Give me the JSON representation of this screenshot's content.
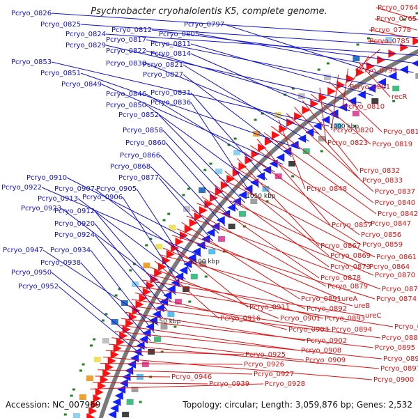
{
  "title": "Psychrobacter cryohalolentis K5, complete genome.",
  "footer": {
    "accession": "Accession: NC_007969",
    "topology": "Topology: circular; Length: 3,059,876 bp; Genes: 2,532"
  },
  "colors": {
    "left_labels": "#1010d0",
    "right_labels": "#e01010",
    "backbone": "#7a7a7a"
  },
  "ticks": [
    "950 kbp",
    "1000 kbp",
    "1050 kbp",
    "1100 kbp",
    "1150 kbp"
  ],
  "left_labels": [
    "Pcryo_0826",
    "Pcryo_0825",
    "Pcryo_0824",
    "Pcryo_0812",
    "Pcryo_0805",
    "Pcryo_0797",
    "Pcryo_0817",
    "Pcryo_0811",
    "Pcryo_0829",
    "Pcryo_0822",
    "Pcryo_0814",
    "Pcryo_0853",
    "Pcryo_0830",
    "Pcryo_0821",
    "Pcryo_0851",
    "Pcryo_0827",
    "Pcryo_0849",
    "Pcryo_0846",
    "Pcryo_0831",
    "Pcryo_0850",
    "Pcryo_0836",
    "Pcryo_0852",
    "Pcryo_0858",
    "Pcryo_0860",
    "Pcryo_0866",
    "Pcryo_0868",
    "Pcryo_0877",
    "Pcryo_0910",
    "Pcryo_0922",
    "Pcryo_0907",
    "Pcryo_0905",
    "Pcryo_0913",
    "Pcryo_0906",
    "Pcryo_0923",
    "Pcryo_0912",
    "Pcryo_0920",
    "Pcryo_0924",
    "Pcryo_0947",
    "Pcryo_0934",
    "Pcryo_0938",
    "Pcryo_0950",
    "Pcryo_0952"
  ],
  "right_labels": [
    "Pcryo_0764",
    "Pcryo_0765",
    "Pcryo_0778",
    "Pcryo_0785",
    "Pcryo_0794",
    "Pcryo_0801",
    "recR",
    "Pcryo_0810",
    "Pcryo_0820",
    "Pcryo_0815",
    "Pcryo_0823",
    "Pcryo_0819",
    "Pcryo_0832",
    "Pcryo_0833",
    "Pcryo_0837",
    "Pcryo_0848",
    "Pcryo_0840",
    "Pcryo_0842",
    "Pcryo_0857",
    "Pcryo_0847",
    "Pcryo_0856",
    "Pcryo_0867",
    "Pcryo_0859",
    "Pcryo_0869",
    "Pcryo_0861",
    "Pcryo_0873",
    "Pcryo_0864",
    "Pcryo_0878",
    "Pcryo_0870",
    "Pcryo_0879",
    "Pcryo_0871",
    "Pcryo_0891",
    "ureA",
    "Pcryo_0874",
    "Pcryo_0911",
    "Pcryo_0892",
    "ureB",
    "Pcryo_0916",
    "Pcryo_0901",
    "Pcryo_0893",
    "ureC",
    "Pcryo_0883",
    "Pcryo_0903",
    "Pcryo_0894",
    "Pcryo_0887",
    "Pcryo_0902",
    "Pcryo_0895",
    "Pcryo_0908",
    "Pcryo_0896",
    "Pcryo_0909",
    "Pcryo_0897",
    "Pcryo_0925",
    "Pcryo_0900",
    "Pcryo_0926",
    "Pcryo_0927",
    "Pcryo_0946",
    "Pcryo_0939",
    "Pcryo_0928"
  ]
}
